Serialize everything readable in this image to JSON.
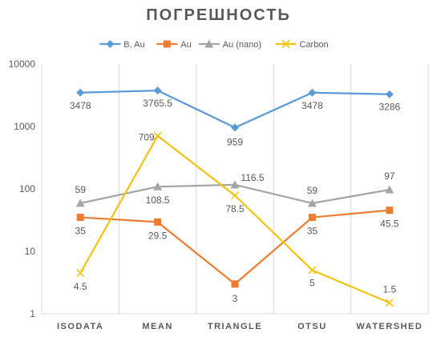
{
  "chart_data": {
    "type": "line",
    "title": "ПОГРЕШНОСТЬ",
    "xlabel": "",
    "ylabel": "",
    "y_scale": "log",
    "ylim": [
      1,
      10000
    ],
    "y_ticks": [
      "1",
      "10",
      "100",
      "1000",
      "10000"
    ],
    "grid": "vertical",
    "legend_position": "top",
    "categories": [
      "ISODATA",
      "MEAN",
      "TRIANGLE",
      "OTSU",
      "WATERSHED"
    ],
    "series": [
      {
        "name": "B, Au",
        "color": "#5B9BD5",
        "marker": "diamond",
        "values": [
          3478,
          3765.5,
          959,
          3478,
          3286
        ],
        "labels": [
          "3478",
          "3765.5",
          "959",
          "3478",
          "3286"
        ]
      },
      {
        "name": "Au",
        "color": "#ED7D31",
        "marker": "square",
        "values": [
          35,
          29.5,
          3,
          35,
          45.5
        ],
        "labels": [
          "35",
          "29.5",
          "3",
          "35",
          "45.5"
        ]
      },
      {
        "name": "Au (nano)",
        "color": "#A5A5A5",
        "marker": "triangle",
        "values": [
          59,
          108.5,
          116.5,
          59,
          97
        ],
        "labels": [
          "59",
          "108.5",
          "116.5",
          "59",
          "97"
        ]
      },
      {
        "name": "Carbon",
        "color": "#F2C314",
        "marker": "x",
        "values": [
          4.5,
          709,
          78.5,
          5,
          1.5
        ],
        "labels": [
          "4.5",
          "709",
          "78.5",
          "5",
          "1.5"
        ]
      }
    ]
  }
}
